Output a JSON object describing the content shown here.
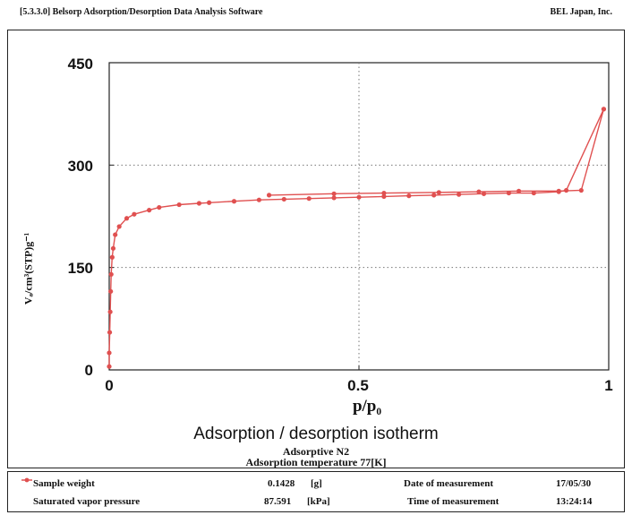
{
  "header": {
    "left": "[5.3.3.0] Belsorp Adsorption/Desorption Data Analysis Software",
    "right": "BEL Japan, Inc."
  },
  "colors": {
    "series": "#e05050",
    "axis": "#222222",
    "grid": "#777777"
  },
  "chart_data": {
    "type": "line",
    "title": "Adsorption / desorption isotherm",
    "subtitles": [
      "Adsorptive N2",
      "Adsorption temperature 77[K]"
    ],
    "xlabel": "p/p₀",
    "ylabel": "Vₐ/cm³(STP)g⁻¹",
    "xlim": [
      0,
      1
    ],
    "ylim": [
      0,
      450
    ],
    "x_ticks": [
      "0",
      "0.5",
      "1"
    ],
    "y_ticks": [
      "0",
      "150",
      "300",
      "450"
    ],
    "grid": "dotted at x=0.5 and y=150, 300",
    "series": [
      {
        "points": [
          [
            0.0,
            5
          ],
          [
            0.0,
            25
          ],
          [
            0.001,
            55
          ],
          [
            0.002,
            85
          ],
          [
            0.003,
            115
          ],
          [
            0.004,
            140
          ],
          [
            0.006,
            165
          ],
          [
            0.008,
            178
          ],
          [
            0.012,
            198
          ],
          [
            0.02,
            210
          ],
          [
            0.035,
            222
          ],
          [
            0.05,
            228
          ],
          [
            0.08,
            234
          ],
          [
            0.1,
            238
          ],
          [
            0.14,
            242
          ],
          [
            0.18,
            244
          ],
          [
            0.2,
            245
          ],
          [
            0.25,
            247
          ],
          [
            0.3,
            249
          ],
          [
            0.35,
            250
          ],
          [
            0.4,
            251
          ],
          [
            0.45,
            252
          ],
          [
            0.5,
            253
          ],
          [
            0.55,
            254
          ],
          [
            0.6,
            255
          ],
          [
            0.65,
            256
          ],
          [
            0.7,
            257
          ],
          [
            0.75,
            258
          ],
          [
            0.8,
            259
          ],
          [
            0.85,
            259
          ],
          [
            0.9,
            261
          ],
          [
            0.915,
            263
          ],
          [
            0.99,
            382
          ]
        ]
      },
      {
        "points": [
          [
            0.99,
            382
          ],
          [
            0.945,
            263
          ],
          [
            0.9,
            262
          ],
          [
            0.82,
            262
          ],
          [
            0.74,
            261
          ],
          [
            0.66,
            260
          ],
          [
            0.55,
            259
          ],
          [
            0.45,
            258
          ],
          [
            0.32,
            256
          ]
        ]
      }
    ]
  },
  "info": {
    "sample_weight_label": "Sample weight",
    "sample_weight_value": "0.1428",
    "sample_weight_unit": "[g]",
    "date_label": "Date of measurement",
    "date_value": "17/05/30",
    "svp_label": "Saturated vapor pressure",
    "svp_value": "87.591",
    "svp_unit": "[kPa]",
    "time_label": "Time of measurement",
    "time_value": "13:24:14"
  }
}
